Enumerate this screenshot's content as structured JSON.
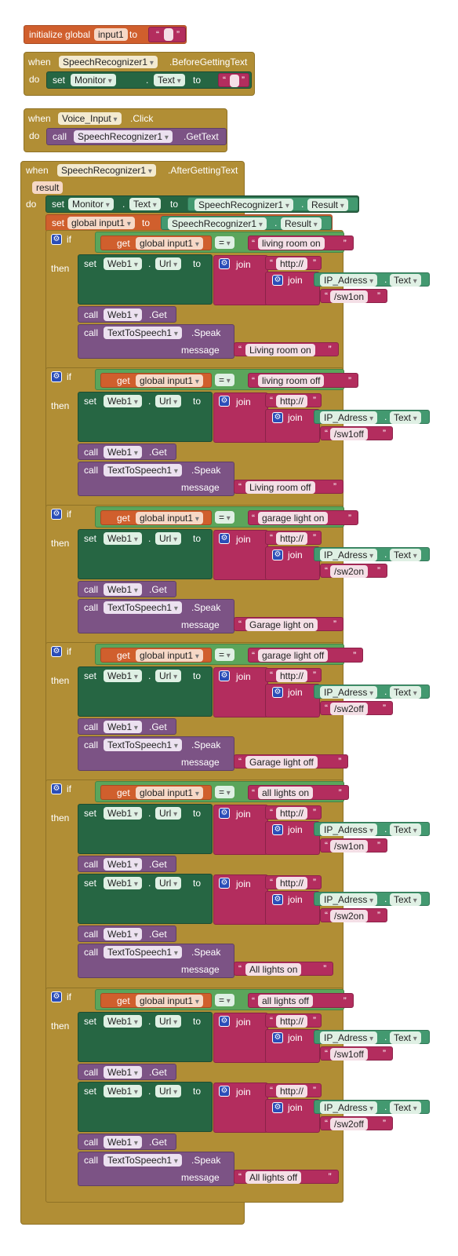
{
  "labels": {
    "when": "when",
    "do": "do",
    "then": "then",
    "if": "if",
    "set": "set",
    "call": "call",
    "get": "get",
    "to": "to",
    "join": "join",
    "eq": "=",
    "result": "result",
    "get_method": ".Get",
    "speak_method": ".Speak",
    "message": "message",
    "init_global": "initialize global",
    "dot": ".",
    "quote": "“",
    "quote_close": "”"
  },
  "init": {
    "var_name": "input1"
  },
  "before": {
    "component": "SpeechRecognizer1",
    "event": ".BeforeGettingText",
    "set_component": "Monitor",
    "set_prop": "Text"
  },
  "click": {
    "component": "Voice_Input",
    "event": ".Click",
    "call_component": "SpeechRecognizer1",
    "call_method": ".GetText"
  },
  "after": {
    "component": "SpeechRecognizer1",
    "event": ".AfterGettingText",
    "param": "result",
    "set1_component": "Monitor",
    "set1_prop": "Text",
    "set1_value_component": "SpeechRecognizer1",
    "set1_value_prop": "Result",
    "set2_var": "global input1",
    "set2_value_component": "SpeechRecognizer1",
    "set2_value_prop": "Result"
  },
  "common": {
    "get_var": "global input1",
    "web": "Web1",
    "url": "Url",
    "http": "http://",
    "ip": "IP_Adress",
    "ip_prop": "Text",
    "tts": "TextToSpeech1"
  },
  "blocks": [
    {
      "compare": "living room on",
      "paths": [
        "/sw1on"
      ],
      "message": "Living room on"
    },
    {
      "compare": "living room off",
      "paths": [
        "/sw1off"
      ],
      "message": "Living room off"
    },
    {
      "compare": "garage light on",
      "paths": [
        "/sw2on"
      ],
      "message": "Garage light on"
    },
    {
      "compare": "garage light off",
      "paths": [
        "/sw2off"
      ],
      "message": "Garage light off"
    },
    {
      "compare": "all lights on",
      "paths": [
        "/sw1on",
        "/sw2on"
      ],
      "message": "All lights on"
    },
    {
      "compare": "all lights off",
      "paths": [
        "/sw1off",
        "/sw2off"
      ],
      "message": "All lights off"
    }
  ]
}
